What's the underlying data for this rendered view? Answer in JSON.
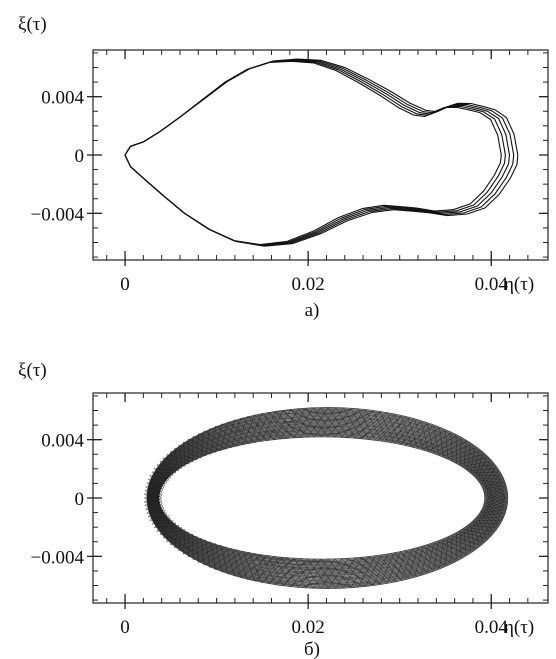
{
  "chart_data": [
    {
      "type": "line",
      "panel_label": "а)",
      "xlabel": "η(τ)",
      "ylabel": "ξ(τ)",
      "xlim": [
        -0.0035,
        0.0462
      ],
      "ylim": [
        -0.0072,
        0.0072
      ],
      "x_ticks": [
        {
          "value": 0,
          "label": "0"
        },
        {
          "value": 0.02,
          "label": "0.02"
        },
        {
          "value": 0.04,
          "label": "0.04"
        }
      ],
      "y_ticks": [
        {
          "value": 0.004,
          "label": "0.004"
        },
        {
          "value": 0,
          "label": "0"
        },
        {
          "value": -0.004,
          "label": "−0.004"
        }
      ],
      "curve_description": "several nearly overlapping closed phase trajectories (peanut-shaped loop)",
      "trajectory_count": 5,
      "series": [
        {
          "x": [
            0.042,
            0.0416,
            0.0408,
            0.0396,
            0.0384,
            0.037,
            0.0356,
            0.0344,
            0.0334,
            0.0322,
            0.0305,
            0.0285,
            0.026,
            0.0235,
            0.021,
            0.0185,
            0.016,
            0.0135,
            0.011,
            0.0085,
            0.006,
            0.0038,
            0.002,
            0.0006,
            0.0,
            0.0006,
            0.0022,
            0.0042,
            0.0065,
            0.0092,
            0.012,
            0.015,
            0.018,
            0.021,
            0.0238,
            0.0265,
            0.0288,
            0.0308,
            0.0325,
            0.0345,
            0.0366,
            0.0385,
            0.04,
            0.0412,
            0.0419,
            0.042
          ],
          "y": [
            0.0,
            0.0014,
            0.0025,
            0.003,
            0.0032,
            0.0034,
            0.0034,
            0.0031,
            0.0028,
            0.0029,
            0.0034,
            0.0042,
            0.0051,
            0.0059,
            0.0064,
            0.0065,
            0.0064,
            0.0059,
            0.005,
            0.0038,
            0.0026,
            0.0016,
            0.0009,
            0.0006,
            0.0,
            -0.0008,
            -0.0017,
            -0.0028,
            -0.004,
            -0.0051,
            -0.0059,
            -0.0062,
            -0.006,
            -0.0053,
            -0.0044,
            -0.0038,
            -0.0036,
            -0.0037,
            -0.0038,
            -0.004,
            -0.0039,
            -0.0035,
            -0.0026,
            -0.0015,
            -0.0006,
            0.0
          ]
        }
      ]
    },
    {
      "type": "line",
      "panel_label": "б)",
      "xlabel": "η(τ)",
      "ylabel": "ξ(τ)",
      "xlim": [
        -0.0035,
        0.0462
      ],
      "ylim": [
        -0.0072,
        0.0072
      ],
      "x_ticks": [
        {
          "value": 0,
          "label": "0"
        },
        {
          "value": 0.02,
          "label": "0.02"
        },
        {
          "value": 0.04,
          "label": "0.04"
        }
      ],
      "y_ticks": [
        {
          "value": 0.004,
          "label": "0.004"
        },
        {
          "value": 0,
          "label": "0"
        },
        {
          "value": -0.004,
          "label": "−0.004"
        }
      ],
      "curve_description": "dense band of many closed elliptical trajectories forming a ring",
      "ring": {
        "center_x": 0.0218,
        "center_y": 0.0,
        "outer_semi_axis_x": 0.0197,
        "outer_semi_axis_y": 0.0062,
        "inner_semi_axis_x": 0.0178,
        "inner_semi_axis_y": 0.0042,
        "trajectory_count": 26
      }
    }
  ]
}
